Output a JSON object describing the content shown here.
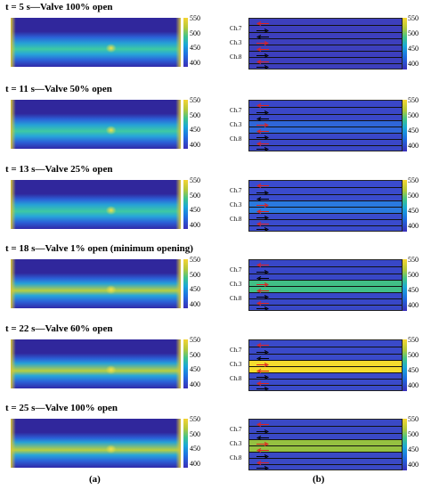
{
  "rows": [
    {
      "title": "t = 5 s—Valve 100% open",
      "band": "#3d3fbd",
      "hi": "#3d3fbd"
    },
    {
      "title": "t = 11 s—Valve 50% open",
      "band": "#3a47c8",
      "hi": "#2f66d8"
    },
    {
      "title": "t = 13 s—Valve 25% open",
      "band": "#3a4bcd",
      "hi": "#2a79df"
    },
    {
      "title": "t = 18 s—Valve 1% open (minimum opening)",
      "band": "#3847c7",
      "hi": "#41bf86"
    },
    {
      "title": "t = 22 s—Valve 60% open",
      "band": "#3a4ac9",
      "hi": "#f4dc2e"
    },
    {
      "title": "t = 25 s—Valve 100% open",
      "band": "#3a49c6",
      "hi": "#95c141"
    }
  ],
  "colorbar": {
    "ticks": [
      "550",
      "500",
      "450",
      "400"
    ]
  },
  "channels": {
    "ch7": "Ch.7",
    "ch3": "Ch.3",
    "ch8": "Ch.8"
  },
  "captions": {
    "a": "(a)",
    "b": "(b)"
  }
}
